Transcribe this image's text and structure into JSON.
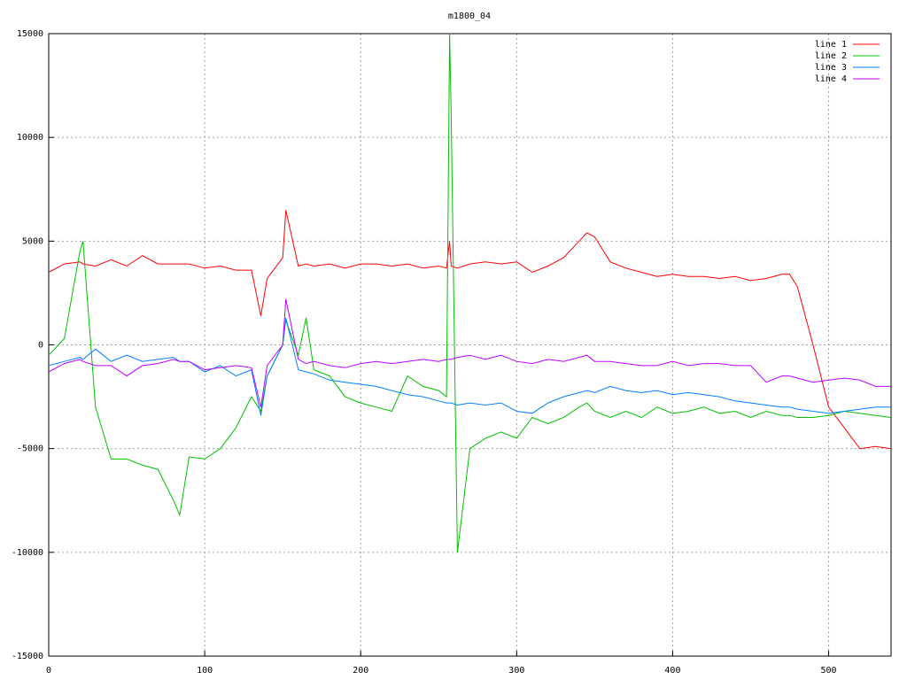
{
  "chart_data": {
    "type": "line",
    "title": "m1800_04",
    "x": [
      0,
      10,
      20,
      22,
      30,
      40,
      50,
      60,
      70,
      80,
      84,
      90,
      100,
      110,
      120,
      130,
      136,
      140,
      150,
      152,
      160,
      165,
      170,
      180,
      190,
      200,
      210,
      220,
      230,
      240,
      250,
      255,
      257,
      258,
      262,
      270,
      280,
      290,
      300,
      310,
      320,
      330,
      340,
      345,
      350,
      360,
      370,
      380,
      390,
      400,
      410,
      420,
      430,
      440,
      450,
      460,
      470,
      475,
      480,
      490,
      500,
      510,
      520,
      530,
      540
    ],
    "series": [
      {
        "name": "line 1",
        "color": "#ff0000",
        "values": [
          3500,
          3900,
          4000,
          3900,
          3800,
          4100,
          3800,
          4300,
          3900,
          3900,
          3900,
          3900,
          3700,
          3800,
          3600,
          3600,
          1400,
          3200,
          4200,
          6500,
          3800,
          3900,
          3800,
          3900,
          3700,
          3900,
          3900,
          3800,
          3900,
          3700,
          3800,
          3700,
          5000,
          3800,
          3700,
          3900,
          4000,
          3900,
          4000,
          3500,
          3800,
          4200,
          5000,
          5400,
          5200,
          4000,
          3700,
          3500,
          3300,
          3400,
          3300,
          3300,
          3200,
          3300,
          3100,
          3200,
          3400,
          3400,
          2800,
          0,
          -3000,
          -4000,
          -5000,
          -4900,
          -5000
        ]
      },
      {
        "name": "line 2",
        "color": "#00c000",
        "values": [
          -500,
          300,
          4500,
          5000,
          -3000,
          -5500,
          -5500,
          -5800,
          -6000,
          -7500,
          -8200,
          -5400,
          -5500,
          -5000,
          -4000,
          -2500,
          -3200,
          -1500,
          0,
          1200,
          -500,
          1300,
          -1200,
          -1500,
          -2500,
          -2800,
          -3000,
          -3200,
          -1500,
          -2000,
          -2200,
          -2500,
          15000,
          11000,
          -10000,
          -5000,
          -4500,
          -4200,
          -4500,
          -3500,
          -3800,
          -3500,
          -3000,
          -2800,
          -3200,
          -3500,
          -3200,
          -3500,
          -3000,
          -3300,
          -3200,
          -3000,
          -3300,
          -3200,
          -3500,
          -3200,
          -3400,
          -3400,
          -3500,
          -3500,
          -3400,
          -3200,
          -3300,
          -3400,
          -3500
        ]
      },
      {
        "name": "line 3",
        "color": "#0080ff",
        "values": [
          -1000,
          -800,
          -600,
          -700,
          -200,
          -800,
          -500,
          -800,
          -700,
          -600,
          -800,
          -800,
          -1300,
          -1000,
          -1500,
          -1200,
          -3400,
          -1500,
          0,
          1300,
          -1200,
          -1300,
          -1400,
          -1700,
          -1800,
          -1900,
          -2000,
          -2200,
          -2400,
          -2500,
          -2700,
          -2800,
          -2800,
          -2800,
          -2900,
          -2800,
          -2900,
          -2800,
          -3200,
          -3300,
          -2800,
          -2500,
          -2300,
          -2200,
          -2300,
          -2000,
          -2200,
          -2300,
          -2200,
          -2400,
          -2300,
          -2400,
          -2500,
          -2700,
          -2800,
          -2900,
          -3000,
          -3000,
          -3100,
          -3200,
          -3300,
          -3200,
          -3100,
          -3000,
          -3000
        ]
      },
      {
        "name": "line 4",
        "color": "#c000ff",
        "values": [
          -1300,
          -900,
          -700,
          -800,
          -1000,
          -1000,
          -1500,
          -1000,
          -900,
          -700,
          -800,
          -800,
          -1200,
          -1100,
          -1000,
          -1100,
          -3000,
          -1000,
          0,
          2200,
          -700,
          -900,
          -800,
          -1000,
          -1100,
          -900,
          -800,
          -900,
          -800,
          -700,
          -800,
          -700,
          -700,
          -700,
          -600,
          -500,
          -700,
          -500,
          -800,
          -900,
          -700,
          -800,
          -600,
          -500,
          -800,
          -800,
          -900,
          -1000,
          -1000,
          -800,
          -1000,
          -900,
          -900,
          -1000,
          -1000,
          -1800,
          -1500,
          -1500,
          -1600,
          -1800,
          -1700,
          -1600,
          -1700,
          -2000,
          -2000
        ]
      }
    ],
    "xlim": [
      0,
      540
    ],
    "ylim": [
      -15000,
      15000
    ],
    "xticks": [
      0,
      100,
      200,
      300,
      400,
      500
    ],
    "yticks": [
      -15000,
      -10000,
      -5000,
      0,
      5000,
      10000,
      15000
    ],
    "grid": true,
    "legend": "top-right"
  }
}
